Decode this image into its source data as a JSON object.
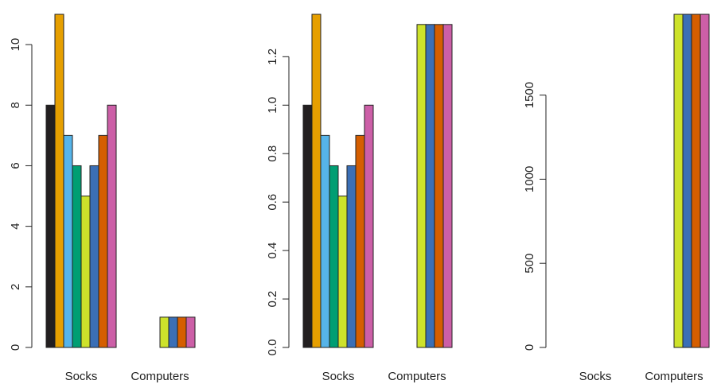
{
  "colors": [
    "#231f20",
    "#e69f00",
    "#56b4e9",
    "#009e73",
    "#cde22b",
    "#3b6fb6",
    "#d55e00",
    "#cc5fa7"
  ],
  "chart_data": [
    {
      "type": "bar",
      "categories": [
        "Socks",
        "Computers"
      ],
      "series_values": [
        [
          8,
          11,
          7,
          6,
          5,
          6,
          7,
          8
        ],
        [
          0,
          0,
          0,
          0,
          1,
          1,
          1,
          1
        ]
      ],
      "ylim": [
        0,
        11
      ],
      "yticks": [
        0,
        2,
        4,
        6,
        8,
        10
      ],
      "ytick_labels": [
        "0",
        "2",
        "4",
        "6",
        "8",
        "10"
      ],
      "grid": false
    },
    {
      "type": "bar",
      "categories": [
        "Socks",
        "Computers"
      ],
      "series_values": [
        [
          1.0,
          1.375,
          0.875,
          0.75,
          0.625,
          0.75,
          0.875,
          1.0
        ],
        [
          0,
          0,
          0,
          0,
          1.333,
          1.333,
          1.333,
          1.333
        ]
      ],
      "ylim": [
        0,
        1.375
      ],
      "yticks": [
        0,
        0.2,
        0.4,
        0.6,
        0.8,
        1.0,
        1.2
      ],
      "ytick_labels": [
        "0.0",
        "0.2",
        "0.4",
        "0.6",
        "0.8",
        "1.0",
        "1.2"
      ],
      "grid": false
    },
    {
      "type": "bar",
      "categories": [
        "Socks",
        "Computers"
      ],
      "series_values": [
        [
          0,
          0,
          0,
          0,
          0,
          0,
          0,
          0
        ],
        [
          0,
          0,
          0,
          0,
          1980,
          1980,
          1980,
          1980
        ]
      ],
      "ylim": [
        0,
        1980
      ],
      "yticks": [
        0,
        500,
        1000,
        1500
      ],
      "ytick_labels": [
        "0",
        "500",
        "1000",
        "1500"
      ],
      "grid": false
    }
  ]
}
